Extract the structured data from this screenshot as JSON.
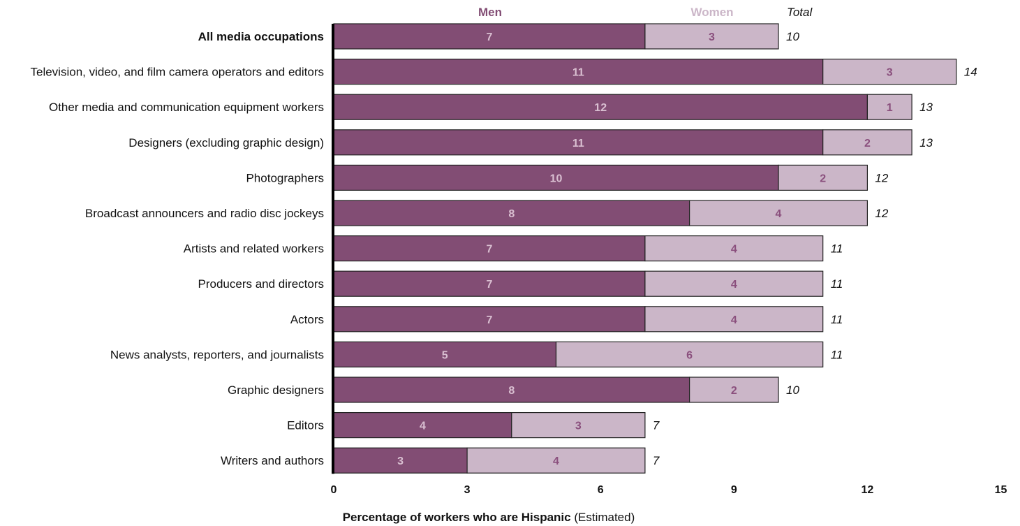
{
  "chart_data": {
    "type": "bar",
    "orientation": "horizontal",
    "stacked": true,
    "categories": [
      "All media occupations",
      "Television, video, and film camera operators and editors",
      "Other media and communication equipment workers",
      "Designers (excluding graphic design)",
      "Photographers",
      "Broadcast announcers and radio disc jockeys",
      "Artists and related workers",
      "Producers and directors",
      "Actors",
      "News analysts, reporters, and journalists",
      "Graphic designers",
      "Editors",
      "Writers and authors"
    ],
    "highlight_category": "All media occupations",
    "series": [
      {
        "name": "Men",
        "color": "#824d74",
        "label_color": "#d9bfd1",
        "values": [
          7,
          11,
          12,
          11,
          10,
          8,
          7,
          7,
          7,
          5,
          8,
          4,
          3
        ]
      },
      {
        "name": "Women",
        "color": "#cbb6c8",
        "label_color": "#8a4f7d",
        "values": [
          3,
          3,
          1,
          2,
          2,
          4,
          4,
          4,
          4,
          6,
          2,
          3,
          4
        ]
      }
    ],
    "totals_header": "Total",
    "totals": [
      10,
      14,
      13,
      13,
      12,
      12,
      11,
      11,
      11,
      11,
      10,
      7,
      7
    ],
    "xlim": [
      0,
      15
    ],
    "xticks": [
      "0",
      "3",
      "6",
      "9",
      "12",
      "15"
    ],
    "xlabel_bold": "Percentage of workers who are Hispanic",
    "xlabel_rest": " (Estimated)",
    "legend_position": "top",
    "grid": false
  }
}
